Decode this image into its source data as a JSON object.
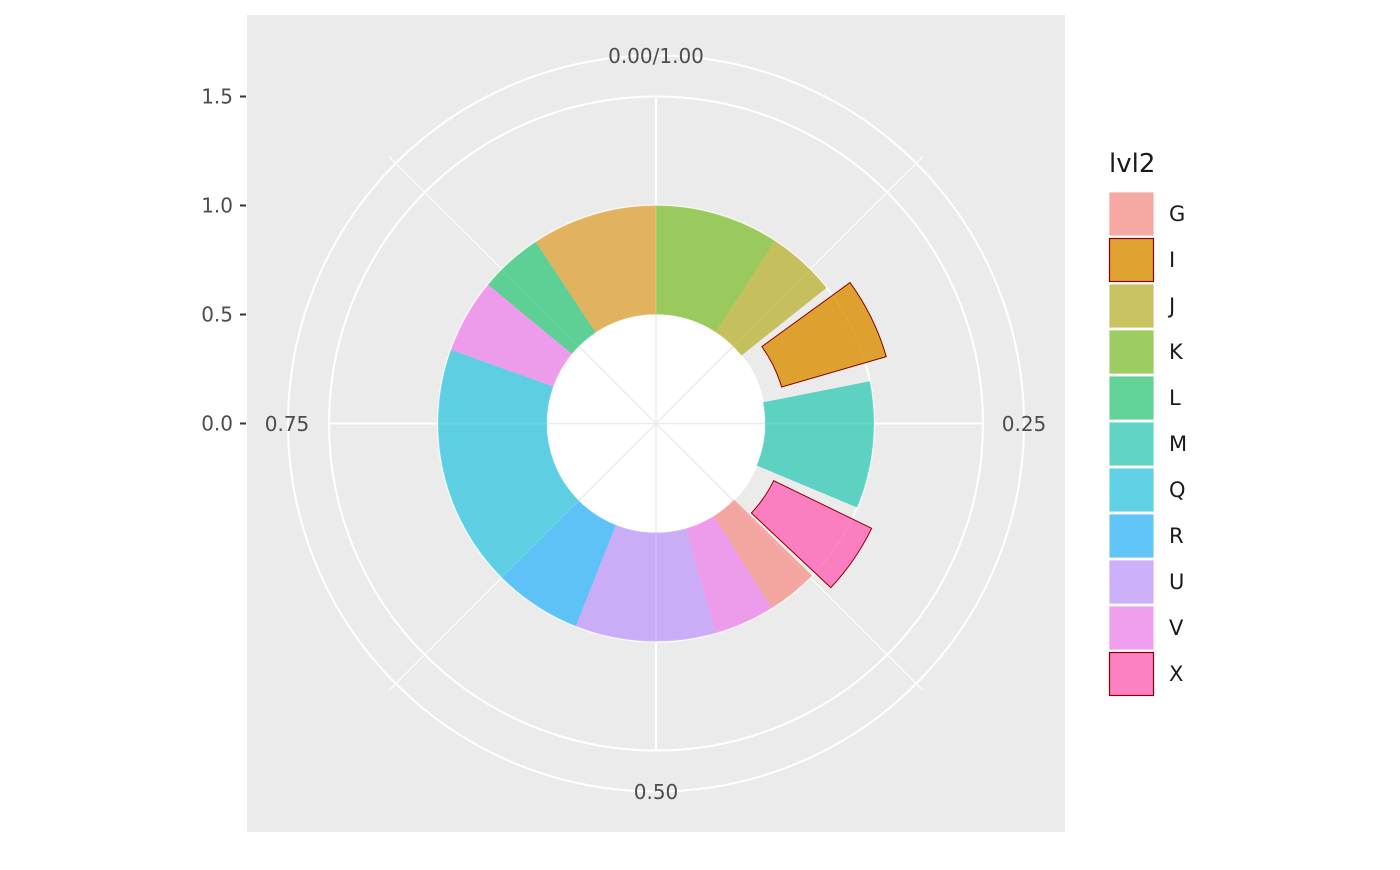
{
  "chart_data": {
    "type": "pie",
    "subtype": "donut-sunburst",
    "coord": "polar",
    "y_axis": {
      "ticks": [
        "0.0",
        "0.5",
        "1.0",
        "1.5"
      ],
      "values": [
        0.0,
        0.5,
        1.0,
        1.5
      ],
      "range": [
        0.0,
        1.5
      ]
    },
    "theta_axis": {
      "ticks": [
        "0.00/1.00",
        "0.25",
        "0.50",
        "0.75"
      ],
      "values": [
        0.0,
        0.25,
        0.5,
        0.75
      ]
    },
    "legend": {
      "title": "lvl2",
      "position": "right",
      "entries": [
        {
          "label": "G",
          "color": "#F8766D",
          "highlighted": false
        },
        {
          "label": "I",
          "color": "#DB8E00",
          "highlighted": true
        },
        {
          "label": "J",
          "color": "#AEA200",
          "highlighted": false
        },
        {
          "label": "K",
          "color": "#64B200",
          "highlighted": false
        },
        {
          "label": "L",
          "color": "#00BD5C",
          "highlighted": false
        },
        {
          "label": "M",
          "color": "#00C1A7",
          "highlighted": false
        },
        {
          "label": "Q",
          "color": "#00BADE",
          "highlighted": false
        },
        {
          "label": "R",
          "color": "#00A6FF",
          "highlighted": false
        },
        {
          "label": "U",
          "color": "#B385FF",
          "highlighted": false
        },
        {
          "label": "V",
          "color": "#EF67EB",
          "highlighted": false
        },
        {
          "label": "X",
          "color": "#FF63B6",
          "highlighted": true
        }
      ]
    },
    "segments": [
      {
        "category": "K",
        "theta_start": 0.0,
        "theta_end": 0.092,
        "r_inner": 0.5,
        "r_outer": 1.0,
        "highlighted": false
      },
      {
        "category": "J",
        "theta_start": 0.092,
        "theta_end": 0.143,
        "r_inner": 0.5,
        "r_outer": 1.0,
        "highlighted": false
      },
      {
        "category": "I",
        "theta_start": 0.15,
        "theta_end": 0.205,
        "r_inner": 0.6,
        "r_outer": 1.1,
        "highlighted": true
      },
      {
        "category": "M",
        "theta_start": 0.219,
        "theta_end": 0.313,
        "r_inner": 0.5,
        "r_outer": 1.0,
        "highlighted": false
      },
      {
        "category": "X",
        "theta_start": 0.322,
        "theta_end": 0.37,
        "r_inner": 0.6,
        "r_outer": 1.1,
        "highlighted": true
      },
      {
        "category": "G",
        "theta_start": 0.373,
        "theta_end": 0.411,
        "r_inner": 0.5,
        "r_outer": 1.0,
        "highlighted": false
      },
      {
        "category": "V",
        "theta_start": 0.411,
        "theta_end": 0.456,
        "r_inner": 0.5,
        "r_outer": 1.0,
        "highlighted": false
      },
      {
        "category": "U",
        "theta_start": 0.456,
        "theta_end": 0.56,
        "r_inner": 0.5,
        "r_outer": 1.0,
        "highlighted": false
      },
      {
        "category": "R",
        "theta_start": 0.56,
        "theta_end": 0.625,
        "r_inner": 0.5,
        "r_outer": 1.0,
        "highlighted": false
      },
      {
        "category": "Q",
        "theta_start": 0.625,
        "theta_end": 0.805,
        "r_inner": 0.5,
        "r_outer": 1.0,
        "highlighted": false
      },
      {
        "category": "V",
        "theta_start": 0.805,
        "theta_end": 0.86,
        "r_inner": 0.5,
        "r_outer": 1.0,
        "highlighted": false
      },
      {
        "category": "L",
        "theta_start": 0.86,
        "theta_end": 0.907,
        "r_inner": 0.5,
        "r_outer": 1.0,
        "highlighted": false
      },
      {
        "category": "I",
        "theta_start": 0.907,
        "theta_end": 1.0,
        "r_inner": 0.5,
        "r_outer": 1.0,
        "highlighted": false
      }
    ],
    "segment_opacity": 0.6,
    "highlight_opacity": 0.8,
    "highlight_outline": "#8B0000",
    "panel_background": "#EBEBEB",
    "grid_color": "#FFFFFF",
    "grid": true
  }
}
